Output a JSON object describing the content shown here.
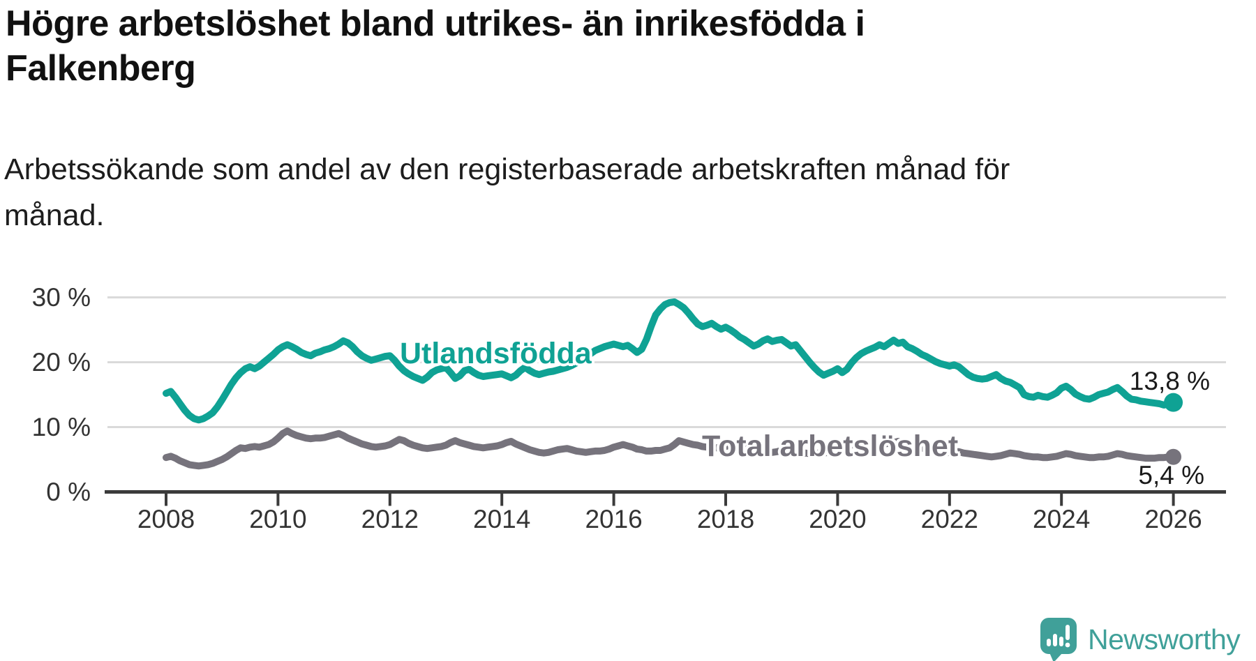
{
  "header": {
    "title": "Högre arbetslöshet bland utrikes- än inrikesfödda i Falkenberg",
    "title_lines": [
      "Högre arbetslöshet bland utrikes- än inrikesfödda i",
      "Falkenberg"
    ],
    "subtitle": "Arbetssökande som andel av den registerbaserade arbetskraften månad för månad.",
    "subtitle_lines": [
      "Arbetssökande som andel av den registerbaserade arbetskraften månad för",
      "månad."
    ]
  },
  "logo": {
    "icon": "newsworthy-speech-bubble-chart-icon",
    "text": "Newsworthy",
    "color": "#40A099"
  },
  "chart_data": {
    "type": "line",
    "title": "Högre arbetslöshet bland utrikes- än inrikesfödda i Falkenberg",
    "xlabel": "",
    "ylabel": "Arbetssökande som andel av den registerbaserade arbetskraften",
    "unit": "%",
    "grid": "horizontal",
    "legend_position": "inline-labels",
    "xlim": [
      2007.9,
      2026.45
    ],
    "ylim": [
      0,
      32
    ],
    "x_ticks": [
      {
        "year": 2008,
        "label": "2008"
      },
      {
        "year": 2010,
        "label": "2010"
      },
      {
        "year": 2012,
        "label": "2012"
      },
      {
        "year": 2014,
        "label": "2014"
      },
      {
        "year": 2016,
        "label": "2016"
      },
      {
        "year": 2018,
        "label": "2018"
      },
      {
        "year": 2020,
        "label": "2020"
      },
      {
        "year": 2022,
        "label": "2022"
      },
      {
        "year": 2024,
        "label": "2024"
      },
      {
        "year": 2026,
        "label": "2026"
      }
    ],
    "y_ticks": [
      {
        "value": 0,
        "label": "0 %"
      },
      {
        "value": 10,
        "label": "10 %"
      },
      {
        "value": 20,
        "label": "20 %"
      },
      {
        "value": 30,
        "label": "30 %"
      }
    ],
    "x_start": 2008.0,
    "x_step_years": 0.08333,
    "series": [
      {
        "name": "Utlandsfödda",
        "color": "#0FA294",
        "end_label": "13,8 %",
        "end_value": 13.8,
        "values": [
          15.2,
          15.5,
          14.6,
          13.6,
          12.6,
          11.8,
          11.3,
          11.1,
          11.3,
          11.7,
          12.2,
          13.1,
          14.2,
          15.4,
          16.6,
          17.6,
          18.4,
          19.0,
          19.3,
          19.0,
          19.4,
          20.0,
          20.6,
          21.2,
          21.9,
          22.4,
          22.7,
          22.4,
          22.0,
          21.5,
          21.2,
          21.0,
          21.4,
          21.6,
          21.9,
          22.1,
          22.4,
          22.8,
          23.3,
          23.0,
          22.4,
          21.6,
          21.0,
          20.6,
          20.3,
          20.5,
          20.7,
          20.9,
          21.0,
          20.3,
          19.4,
          18.7,
          18.2,
          17.8,
          17.5,
          17.2,
          17.7,
          18.4,
          18.8,
          19.0,
          19.2,
          18.4,
          17.5,
          17.9,
          18.7,
          18.9,
          18.4,
          18.0,
          17.8,
          17.9,
          18.0,
          18.1,
          18.2,
          17.9,
          17.6,
          18.0,
          18.7,
          19.2,
          18.7,
          18.3,
          18.1,
          18.3,
          18.5,
          18.6,
          18.8,
          19.0,
          19.2,
          19.5,
          19.9,
          20.3,
          20.8,
          21.3,
          21.8,
          22.1,
          22.4,
          22.6,
          22.8,
          22.6,
          22.4,
          22.6,
          22.1,
          21.5,
          22.0,
          23.5,
          25.5,
          27.3,
          28.2,
          28.9,
          29.2,
          29.3,
          28.9,
          28.4,
          27.6,
          26.7,
          25.9,
          25.5,
          25.7,
          26.0,
          25.5,
          25.1,
          25.4,
          25.0,
          24.5,
          23.9,
          23.5,
          23.0,
          22.5,
          22.8,
          23.3,
          23.6,
          23.2,
          23.4,
          23.5,
          23.0,
          22.5,
          22.7,
          21.8,
          20.9,
          20.0,
          19.2,
          18.5,
          18.0,
          18.3,
          18.6,
          19.0,
          18.4,
          18.9,
          19.9,
          20.7,
          21.3,
          21.7,
          22.0,
          22.3,
          22.7,
          22.4,
          22.9,
          23.4,
          22.9,
          23.1,
          22.4,
          22.1,
          21.7,
          21.2,
          20.9,
          20.5,
          20.1,
          19.8,
          19.6,
          19.4,
          19.6,
          19.3,
          18.7,
          18.1,
          17.7,
          17.5,
          17.4,
          17.5,
          17.8,
          18.1,
          17.5,
          17.1,
          16.9,
          16.5,
          16.1,
          15.0,
          14.7,
          14.6,
          14.9,
          14.7,
          14.6,
          14.9,
          15.3,
          16.0,
          16.3,
          15.8,
          15.1,
          14.7,
          14.4,
          14.3,
          14.6,
          15.0,
          15.2,
          15.4,
          15.8,
          16.1,
          15.5,
          14.8,
          14.3,
          14.2,
          14.0,
          13.9,
          13.8,
          13.7,
          13.6,
          13.4,
          13.6,
          13.8
        ]
      },
      {
        "name": "Total arbetslöshet",
        "color": "#76737C",
        "end_label": "5,4 %",
        "end_value": 5.4,
        "values": [
          5.3,
          5.5,
          5.2,
          4.8,
          4.5,
          4.2,
          4.1,
          4.0,
          4.1,
          4.2,
          4.4,
          4.7,
          5.0,
          5.4,
          5.9,
          6.4,
          6.8,
          6.7,
          6.9,
          7.0,
          6.9,
          7.1,
          7.3,
          7.7,
          8.3,
          9.0,
          9.4,
          9.0,
          8.7,
          8.5,
          8.3,
          8.2,
          8.3,
          8.3,
          8.4,
          8.6,
          8.8,
          9.0,
          8.7,
          8.3,
          8.0,
          7.7,
          7.4,
          7.2,
          7.0,
          6.9,
          7.0,
          7.1,
          7.3,
          7.7,
          8.1,
          7.9,
          7.5,
          7.2,
          7.0,
          6.8,
          6.7,
          6.8,
          6.9,
          7.0,
          7.2,
          7.6,
          7.9,
          7.6,
          7.4,
          7.2,
          7.0,
          6.9,
          6.8,
          6.9,
          7.0,
          7.1,
          7.3,
          7.6,
          7.8,
          7.4,
          7.1,
          6.8,
          6.5,
          6.3,
          6.1,
          6.0,
          6.1,
          6.3,
          6.5,
          6.6,
          6.7,
          6.5,
          6.3,
          6.2,
          6.1,
          6.2,
          6.3,
          6.3,
          6.4,
          6.6,
          6.9,
          7.1,
          7.3,
          7.1,
          6.9,
          6.6,
          6.5,
          6.3,
          6.3,
          6.4,
          6.4,
          6.6,
          6.8,
          7.3,
          7.9,
          7.7,
          7.5,
          7.3,
          7.2,
          7.0,
          6.9,
          6.8,
          6.8,
          6.9,
          7.0,
          7.2,
          7.1,
          6.9,
          6.7,
          6.5,
          6.3,
          6.2,
          6.1,
          6.0,
          6.1,
          6.2,
          6.4,
          6.5,
          6.4,
          6.3,
          6.2,
          6.0,
          5.9,
          5.9,
          6.0,
          6.0,
          6.1,
          6.2,
          6.4,
          6.7,
          7.0,
          7.2,
          7.4,
          7.5,
          7.6,
          7.5,
          7.4,
          7.3,
          7.4,
          7.5,
          7.6,
          7.8,
          7.6,
          7.4,
          7.2,
          7.0,
          6.8,
          6.6,
          6.4,
          6.2,
          6.1,
          6.0,
          6.1,
          6.2,
          6.2,
          6.0,
          5.9,
          5.8,
          5.7,
          5.6,
          5.5,
          5.4,
          5.5,
          5.6,
          5.8,
          6.0,
          5.9,
          5.8,
          5.6,
          5.5,
          5.4,
          5.4,
          5.3,
          5.3,
          5.4,
          5.5,
          5.7,
          5.9,
          5.8,
          5.6,
          5.5,
          5.4,
          5.3,
          5.3,
          5.4,
          5.4,
          5.5,
          5.7,
          5.9,
          5.8,
          5.6,
          5.5,
          5.4,
          5.3,
          5.2,
          5.2,
          5.2,
          5.3,
          5.3,
          5.4,
          5.4
        ]
      }
    ],
    "colors": {
      "accent_teal": "#0FA294",
      "neutral_gray": "#76737C",
      "gridline": "#DADADA",
      "axis": "#3B3B3B",
      "tick_text": "#333333"
    }
  }
}
